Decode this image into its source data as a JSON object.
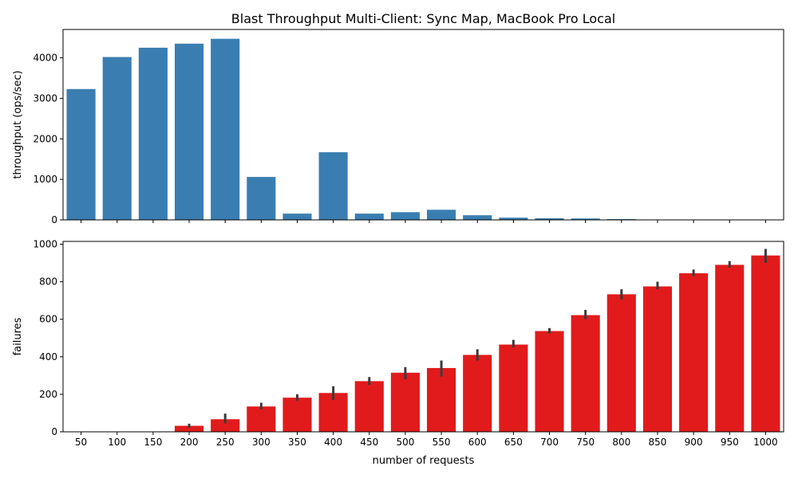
{
  "chart_data": [
    {
      "type": "bar",
      "title": "Blast Throughput Multi-Client: Sync Map, MacBook Pro Local",
      "xlabel": "",
      "ylabel": "throughput (ops/sec)",
      "categories": [
        "50",
        "100",
        "150",
        "200",
        "250",
        "300",
        "350",
        "400",
        "450",
        "500",
        "550",
        "600",
        "650",
        "700",
        "750",
        "800",
        "850",
        "900",
        "950",
        "1000"
      ],
      "values": [
        3230,
        4020,
        4250,
        4350,
        4470,
        1060,
        155,
        1670,
        155,
        190,
        250,
        115,
        55,
        40,
        35,
        20,
        5,
        3,
        2,
        1
      ],
      "ylim": [
        0,
        4700
      ],
      "yticks": [
        0,
        1000,
        2000,
        3000,
        4000
      ],
      "show_xtick_labels": false,
      "color": "#3a7eb1",
      "grid": false,
      "legend": "none"
    },
    {
      "type": "bar",
      "title": "",
      "xlabel": "number of requests",
      "ylabel": "failures",
      "categories": [
        "50",
        "100",
        "150",
        "200",
        "250",
        "300",
        "350",
        "400",
        "450",
        "500",
        "550",
        "600",
        "650",
        "700",
        "750",
        "800",
        "850",
        "900",
        "950",
        "1000"
      ],
      "values": [
        0,
        0,
        0,
        32,
        67,
        135,
        182,
        207,
        270,
        315,
        340,
        410,
        465,
        537,
        622,
        733,
        775,
        845,
        890,
        940
      ],
      "error_low": [
        0,
        0,
        0,
        22,
        45,
        120,
        165,
        170,
        250,
        280,
        295,
        380,
        450,
        525,
        600,
        705,
        760,
        830,
        875,
        900
      ],
      "error_high": [
        0,
        0,
        0,
        43,
        97,
        155,
        200,
        243,
        292,
        345,
        380,
        440,
        490,
        553,
        650,
        760,
        800,
        865,
        910,
        975
      ],
      "ylim": [
        0,
        1015
      ],
      "yticks": [
        0,
        200,
        400,
        600,
        800,
        1000
      ],
      "show_xtick_labels": true,
      "color": "#e11b1b",
      "error_color": "#3b3b3b",
      "grid": false,
      "legend": "none"
    }
  ]
}
